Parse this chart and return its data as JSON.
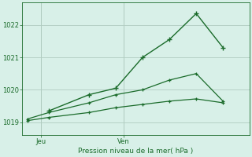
{
  "title": "Pression niveau de la mer( hPa )",
  "bg_color": "#cce8d8",
  "plot_bg_color": "#d8f0e8",
  "grid_color": "#b0ccc0",
  "line_color": "#1a6b2a",
  "spine_color": "#1a6b2a",
  "ylim": [
    1018.6,
    1022.7
  ],
  "yticks": [
    1019,
    1020,
    1021,
    1022
  ],
  "xlim": [
    0,
    8.5
  ],
  "x_tick_positions": [
    0.7,
    3.8
  ],
  "x_tick_names": [
    "Jeu",
    "Ven"
  ],
  "series_top_x": [
    1.0,
    2.5,
    3.5,
    4.5,
    5.5,
    6.5,
    7.5
  ],
  "series_top_y": [
    1019.35,
    1019.85,
    1020.05,
    1021.0,
    1021.55,
    1022.35,
    1021.3
  ],
  "series_mid_x": [
    0.2,
    1.0,
    2.5,
    3.5,
    4.5,
    5.5,
    6.5,
    7.5
  ],
  "series_mid_y": [
    1019.1,
    1019.3,
    1019.6,
    1019.85,
    1020.0,
    1020.3,
    1020.5,
    1019.65
  ],
  "series_low_x": [
    0.2,
    1.0,
    2.5,
    3.5,
    4.5,
    5.5,
    6.5,
    7.5
  ],
  "series_low_y": [
    1019.05,
    1019.15,
    1019.3,
    1019.45,
    1019.55,
    1019.65,
    1019.72,
    1019.6
  ],
  "figsize": [
    3.2,
    2.0
  ],
  "dpi": 100
}
